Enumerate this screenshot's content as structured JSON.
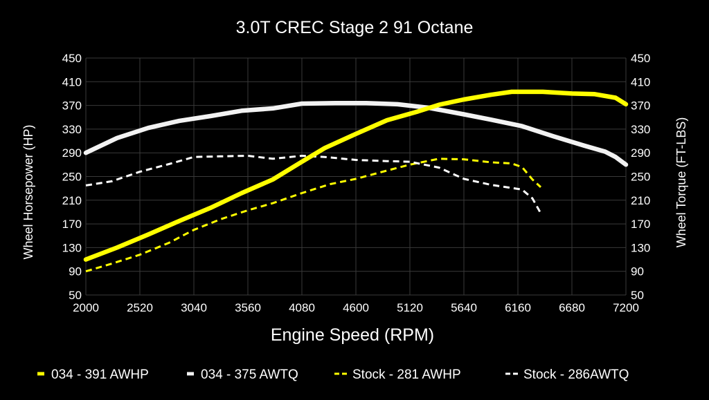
{
  "chart_data": {
    "type": "line",
    "title": "3.0T CREC Stage 2 91 Octane",
    "xlabel": "Engine Speed (RPM)",
    "ylabel": "Wheel Horsepower (HP)",
    "ylabel_right": "Wheel Torque (FT-LBS)",
    "xlim": [
      2000,
      7200
    ],
    "ylim": [
      50,
      450
    ],
    "x_ticks": [
      2000,
      2520,
      3040,
      3560,
      4080,
      4600,
      5120,
      5640,
      6160,
      6680,
      7200
    ],
    "y_ticks": [
      50,
      90,
      130,
      170,
      210,
      250,
      290,
      330,
      370,
      410,
      450
    ],
    "grid": true,
    "legend_position": "bottom",
    "background": "#000000",
    "series": [
      {
        "name": "034 - 391 AWHP",
        "color": "#ffff00",
        "style": "solid",
        "points": [
          [
            2000,
            110
          ],
          [
            2300,
            130
          ],
          [
            2600,
            152
          ],
          [
            2900,
            175
          ],
          [
            3200,
            197
          ],
          [
            3500,
            222
          ],
          [
            3800,
            245
          ],
          [
            4080,
            275
          ],
          [
            4300,
            298
          ],
          [
            4600,
            322
          ],
          [
            4900,
            345
          ],
          [
            5200,
            360
          ],
          [
            5400,
            371
          ],
          [
            5640,
            380
          ],
          [
            5900,
            388
          ],
          [
            6100,
            393
          ],
          [
            6400,
            393
          ],
          [
            6680,
            390
          ],
          [
            6900,
            389
          ],
          [
            7100,
            383
          ],
          [
            7200,
            372
          ]
        ]
      },
      {
        "name": "034 - 375 AWTQ",
        "color": "#f2f2f2",
        "style": "solid",
        "points": [
          [
            2000,
            290
          ],
          [
            2300,
            315
          ],
          [
            2600,
            332
          ],
          [
            2900,
            344
          ],
          [
            3200,
            352
          ],
          [
            3500,
            361
          ],
          [
            3800,
            365
          ],
          [
            4080,
            373
          ],
          [
            4400,
            374
          ],
          [
            4700,
            374
          ],
          [
            5000,
            372
          ],
          [
            5300,
            366
          ],
          [
            5640,
            355
          ],
          [
            5900,
            346
          ],
          [
            6200,
            335
          ],
          [
            6500,
            318
          ],
          [
            6800,
            302
          ],
          [
            7000,
            292
          ],
          [
            7100,
            283
          ],
          [
            7200,
            270
          ]
        ]
      },
      {
        "name": "Stock - 281 AWHP",
        "color": "#ffff00",
        "style": "dashed",
        "points": [
          [
            2000,
            90
          ],
          [
            2250,
            103
          ],
          [
            2520,
            118
          ],
          [
            2800,
            138
          ],
          [
            3040,
            160
          ],
          [
            3300,
            178
          ],
          [
            3560,
            193
          ],
          [
            3800,
            205
          ],
          [
            4080,
            222
          ],
          [
            4350,
            237
          ],
          [
            4600,
            246
          ],
          [
            4900,
            260
          ],
          [
            5120,
            270
          ],
          [
            5400,
            280
          ],
          [
            5640,
            279
          ],
          [
            5900,
            274
          ],
          [
            6100,
            272
          ],
          [
            6200,
            266
          ],
          [
            6300,
            245
          ],
          [
            6380,
            232
          ]
        ]
      },
      {
        "name": "Stock - 286AWTQ",
        "color": "#ffffff",
        "style": "dashed",
        "points": [
          [
            2000,
            235
          ],
          [
            2250,
            242
          ],
          [
            2520,
            258
          ],
          [
            2800,
            271
          ],
          [
            3040,
            283
          ],
          [
            3300,
            284
          ],
          [
            3560,
            285
          ],
          [
            3800,
            280
          ],
          [
            4080,
            285
          ],
          [
            4300,
            283
          ],
          [
            4600,
            278
          ],
          [
            4900,
            276
          ],
          [
            5120,
            275
          ],
          [
            5400,
            265
          ],
          [
            5640,
            246
          ],
          [
            5900,
            236
          ],
          [
            6200,
            228
          ],
          [
            6300,
            213
          ],
          [
            6380,
            188
          ]
        ]
      }
    ]
  }
}
